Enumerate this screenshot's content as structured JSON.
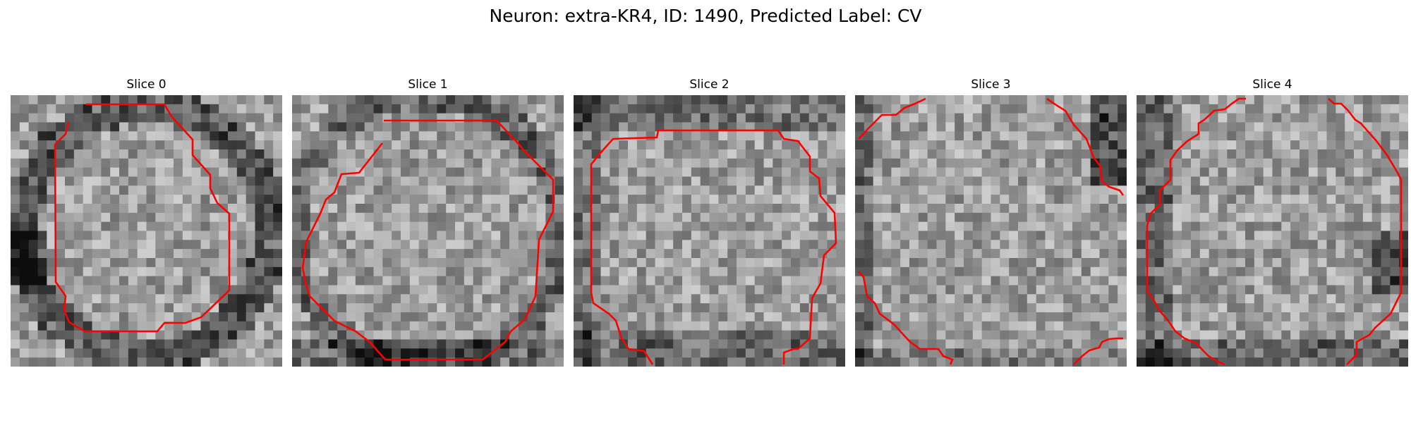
{
  "figure": {
    "title": "Neuron: extra-KR4, ID: 1490, Predicted Label: CV",
    "contour_color": "#ff0000"
  },
  "panels": [
    {
      "title": "Slice 0"
    },
    {
      "title": "Slice 1"
    },
    {
      "title": "Slice 2"
    },
    {
      "title": "Slice 3"
    },
    {
      "title": "Slice 4"
    }
  ]
}
